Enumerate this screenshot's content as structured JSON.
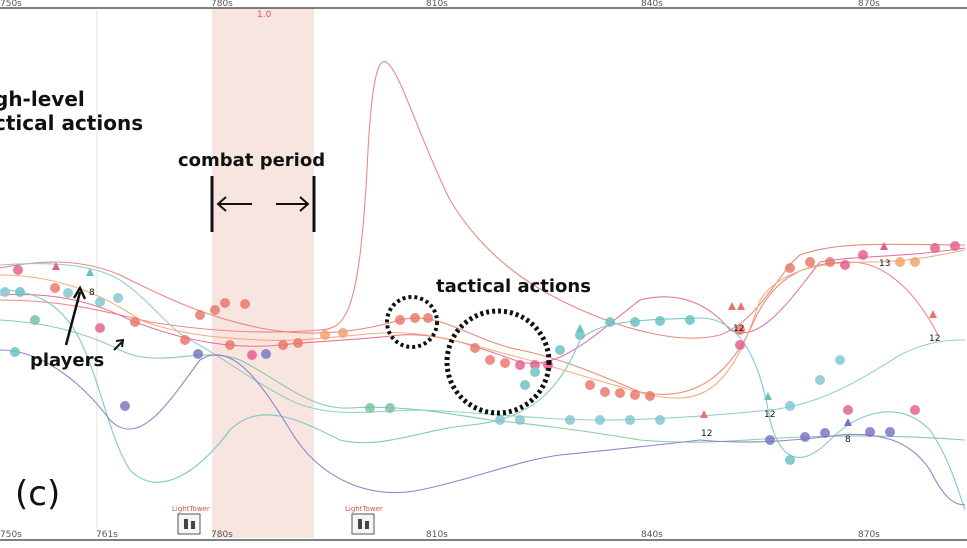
{
  "axis": {
    "top_ticks": [
      "750s",
      "780s",
      "810s",
      "840s",
      "870s"
    ],
    "bottom_ticks": [
      "750s",
      "761s",
      "780s",
      "810s",
      "840s",
      "870s"
    ]
  },
  "combat": {
    "label": "1.0"
  },
  "annotations": {
    "high_level_line1": "gh-level",
    "high_level_line2": "ctical actions",
    "combat_period": "combat period",
    "tactical_actions": "tactical actions",
    "players": "players",
    "panel_label": "(c)"
  },
  "markers": {
    "lighttower": "LightTower"
  },
  "player_numbers": [
    "8",
    "12",
    "12",
    "13",
    "8",
    "12",
    "12"
  ],
  "colors": {
    "red": "#e8766a",
    "pink": "#e25d8c",
    "teal": "#68c1c0",
    "cyan": "#7fc6cf",
    "green": "#76c29a",
    "purple": "#7a72c4",
    "orange": "#f2a06a",
    "combat_fill": "#f6dcd6"
  }
}
